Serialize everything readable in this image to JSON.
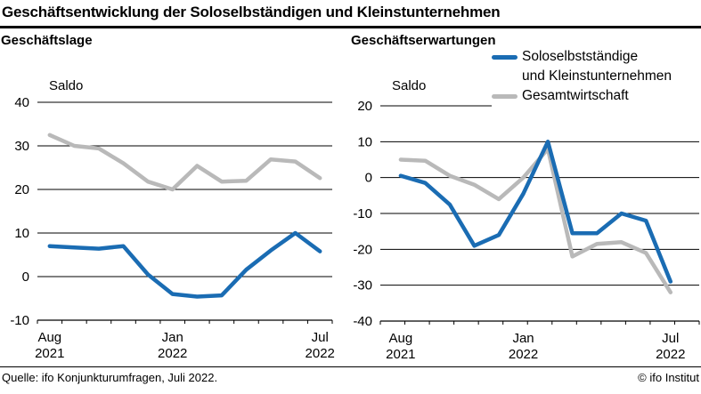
{
  "title": "Geschäftsentwicklung der Soloselbständigen und Kleinstunternehmen",
  "colors": {
    "solo": "#1a6cb3",
    "gesamt": "#b9b9b9",
    "axis": "#000000"
  },
  "legend": {
    "items": [
      {
        "name": "solo",
        "label_lines": [
          "Soloselbstständige",
          "und Kleinstunternehmen"
        ],
        "color": "#1a6cb3"
      },
      {
        "name": "gesamt",
        "label_lines": [
          "Gesamtwirtschaft"
        ],
        "color": "#b9b9b9"
      }
    ]
  },
  "footer": {
    "source": "Quelle: ifo Konjunkturumfragen, Juli 2022.",
    "copyright": "© ifo Institut"
  },
  "chart_data": [
    {
      "id": "lage",
      "type": "line",
      "title": "Geschäftslage",
      "ylabel": "Saldo",
      "categories": [
        "2021-08",
        "2021-09",
        "2021-10",
        "2021-11",
        "2021-12",
        "2022-01",
        "2022-02",
        "2022-03",
        "2022-04",
        "2022-05",
        "2022-06",
        "2022-07"
      ],
      "x_tick_labels": [
        {
          "at": 0,
          "line1": "Aug",
          "line2": "2021"
        },
        {
          "at": 5,
          "line1": "Jan",
          "line2": "2022"
        },
        {
          "at": 11,
          "line1": "Jul",
          "line2": "2022"
        }
      ],
      "ylim": [
        -10,
        40
      ],
      "yticks": [
        40,
        30,
        20,
        10,
        0,
        -10
      ],
      "grid": true,
      "legend_position": "top-right-of-second-panel",
      "series": [
        {
          "name": "Soloselbstständige und Kleinstunternehmen",
          "color": "#1a6cb3",
          "values": [
            7,
            6.7,
            6.4,
            7,
            0.5,
            -4,
            -4.6,
            -4.3,
            1.6,
            6,
            10,
            5.8
          ]
        },
        {
          "name": "Gesamtwirtschaft",
          "color": "#b9b9b9",
          "values": [
            32.5,
            30,
            29.4,
            26,
            21.8,
            20,
            25.4,
            21.8,
            22,
            26.9,
            26.4,
            22.6
          ]
        }
      ]
    },
    {
      "id": "erwartungen",
      "type": "line",
      "title": "Geschäftserwartungen",
      "ylabel": "Saldo",
      "categories": [
        "2021-08",
        "2021-09",
        "2021-10",
        "2021-11",
        "2021-12",
        "2022-01",
        "2022-02",
        "2022-03",
        "2022-04",
        "2022-05",
        "2022-06",
        "2022-07"
      ],
      "x_tick_labels": [
        {
          "at": 0,
          "line1": "Aug",
          "line2": "2021"
        },
        {
          "at": 5,
          "line1": "Jan",
          "line2": "2022"
        },
        {
          "at": 11,
          "line1": "Jul",
          "line2": "2022"
        }
      ],
      "ylim": [
        -40,
        20
      ],
      "yticks": [
        20,
        10,
        0,
        -10,
        -20,
        -30,
        -40
      ],
      "grid": true,
      "series": [
        {
          "name": "Soloselbstständige und Kleinstunternehmen",
          "color": "#1a6cb3",
          "values": [
            0.5,
            -1.5,
            -7.5,
            -19,
            -16,
            -4.5,
            10,
            -15.5,
            -15.5,
            -10,
            -12,
            -29
          ]
        },
        {
          "name": "Gesamtwirtschaft",
          "color": "#b9b9b9",
          "values": [
            5,
            4.7,
            0.5,
            -2,
            -6,
            0,
            8,
            -22,
            -18.5,
            -18,
            -21,
            -32
          ]
        }
      ]
    }
  ]
}
